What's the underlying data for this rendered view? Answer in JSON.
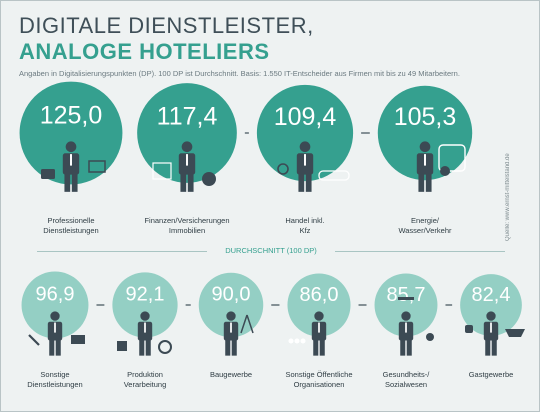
{
  "title_line1": "DIGITALE DIENSTLEISTER,",
  "title_line2": "ANALOGE HOTELIERS",
  "subtitle": "Angaben in Digitalisierungspunkten (DP). 100 DP ist Durchschnitt. Basis: 1.550 IT-Entscheider aus Firmen mit bis zu 49 Mitarbeitern.",
  "source": "Quelle: www.ernst-mittelstand.de",
  "divider_label": "DURCHSCHNITT (100 DP)",
  "colors": {
    "above_average": "#35a08f",
    "below_average": "#94cfc4",
    "person": "#3c4a54",
    "background": "#eef2f2"
  },
  "chart_data": {
    "type": "bar",
    "reference_value": 100,
    "categories": [
      {
        "label": [
          "Professionelle",
          "Dienstleistungen"
        ],
        "value_label": "125,0",
        "icon": "briefcase-icon"
      },
      {
        "label": [
          "Finanzen/Versicherungen",
          "Immobilien"
        ],
        "value_label": "117,4",
        "icon": "money-bag-icon"
      },
      {
        "label": [
          "Handel inkl.",
          "Kfz"
        ],
        "value_label": "109,4",
        "icon": "car-icon"
      },
      {
        "label": [
          "Energie/",
          "Wasser/Verkehr"
        ],
        "value_label": "105,3",
        "icon": "bus-icon"
      },
      {
        "label": [
          "Sonstige",
          "Dienstleistungen"
        ],
        "value_label": "96,9",
        "icon": "tools-icon"
      },
      {
        "label": [
          "Produktion",
          "Verarbeitung"
        ],
        "value_label": "92,1",
        "icon": "gear-icon"
      },
      {
        "label": [
          "Baugewerbe"
        ],
        "value_label": "90,0",
        "icon": "compass-icon"
      },
      {
        "label": [
          "Sonstige Öffentliche",
          "Organisationen"
        ],
        "value_label": "86,0",
        "icon": "crowd-icon"
      },
      {
        "label": [
          "Gesundheits-/",
          "Sozialwesen"
        ],
        "value_label": "85,7",
        "icon": "graduate-icon"
      },
      {
        "label": [
          "Gastgewerbe"
        ],
        "value_label": "82,4",
        "icon": "coffee-icon"
      }
    ],
    "values": [
      125.0,
      117.4,
      109.4,
      105.3,
      96.9,
      92.1,
      90.0,
      86.0,
      85.7,
      82.4
    ]
  }
}
